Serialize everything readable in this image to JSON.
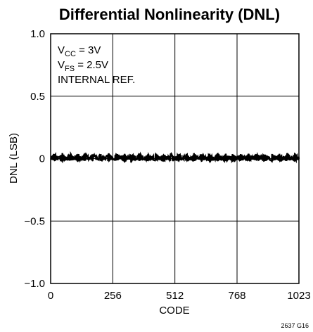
{
  "chart_data": {
    "type": "line",
    "title": "Differential Nonlinearity (DNL)",
    "xlabel": "CODE",
    "ylabel": "DNL (LSB)",
    "xlim": [
      0,
      1023
    ],
    "ylim": [
      -1.0,
      1.0
    ],
    "x_ticks": [
      0,
      256,
      512,
      768,
      1023
    ],
    "y_ticks": [
      1.0,
      0.5,
      0,
      -0.5,
      -1.0
    ],
    "x_tick_labels": [
      "0",
      "256",
      "512",
      "768",
      "1023"
    ],
    "y_tick_labels": [
      "1.0",
      "0.5",
      "0",
      "−0.5",
      "−1.0"
    ],
    "grid": true,
    "series": [
      {
        "color": "#000000",
        "description_values": {
          "min": -0.02,
          "max": 0.04,
          "period_codes": 32
        }
      }
    ],
    "annotations": {
      "line1": {
        "main": "V",
        "sub": "CC",
        "rest": " = 3V"
      },
      "line2": {
        "main": "V",
        "sub": "FS",
        "rest": " = 2.5V"
      },
      "line3": "INTERNAL REF."
    },
    "figure_note": "2637 G16"
  }
}
